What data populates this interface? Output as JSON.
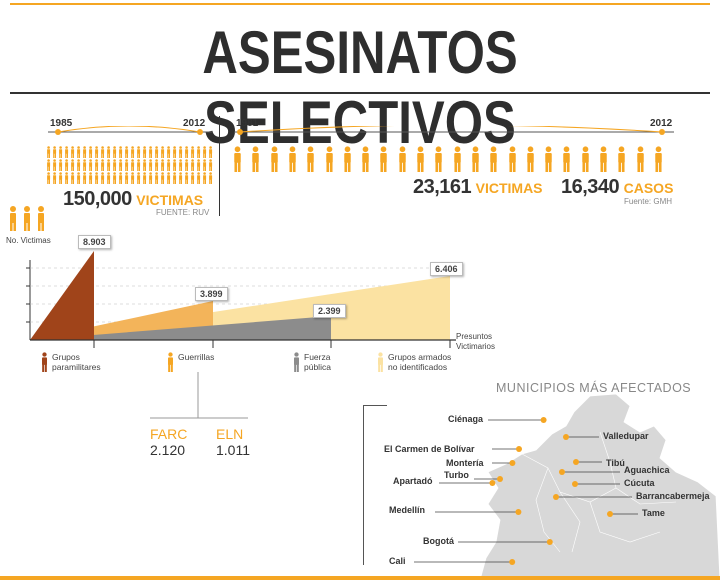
{
  "title": "ASESINATOS SELECTIVOS",
  "colors": {
    "orange": "#f5a623",
    "dark_brown": "#a0441a",
    "light_orange": "#f3b45a",
    "gray": "#8c8c8c",
    "pale_yellow": "#fbe2a2",
    "map": "#d8d8d8"
  },
  "ruv": {
    "start_year": "1985",
    "end_year": "2012",
    "number": "150,000",
    "word": "VICTIMAS",
    "source": "FUENTE: RUV"
  },
  "gmh": {
    "start_year": "1981",
    "end_year": "2012",
    "victims_number": "23,161",
    "victims_word": "VICTIMAS",
    "cases_number": "16,340",
    "cases_word": "CASOS",
    "source": "Fuente: GMH"
  },
  "chart_data": {
    "type": "area",
    "ylabel": "No. Victimas",
    "xlabel": "Presuntos Victimarios",
    "series": [
      {
        "name": "Grupos paramilitares",
        "value": 8903,
        "value_label": "8.903",
        "color": "#a0441a"
      },
      {
        "name": "Guerrillas",
        "value": 3899,
        "value_label": "3.899",
        "color": "#f3b45a"
      },
      {
        "name": "Fuerza pública",
        "value": 2399,
        "value_label": "2.399",
        "color": "#8c8c8c"
      },
      {
        "name": "Grupos armados no identificados",
        "value": 6406,
        "value_label": "6.406",
        "color": "#fbe2a2"
      }
    ],
    "actors": [
      {
        "line1": "Grupos",
        "line2": "paramilitares"
      },
      {
        "line1": "Guerrillas",
        "line2": ""
      },
      {
        "line1": "Fuerza",
        "line2": "pública"
      },
      {
        "line1": "Grupos armados",
        "line2": "no identificados"
      }
    ],
    "guerrilla_breakdown": [
      {
        "name": "FARC",
        "value": "2.120"
      },
      {
        "name": "ELN",
        "value": "1.011"
      }
    ]
  },
  "municipios": {
    "title": "MUNICIPIOS MÁS AFECTADOS",
    "left": [
      "Ciénaga",
      "El Carmen de Bolívar",
      "Montería",
      "Turbo",
      "Apartadó",
      "Medellín",
      "Bogotá",
      "Cali"
    ],
    "right": [
      "Valledupar",
      "Tibú",
      "Aguachica",
      "Cúcuta",
      "Barrancabermeja",
      "Tame"
    ]
  }
}
